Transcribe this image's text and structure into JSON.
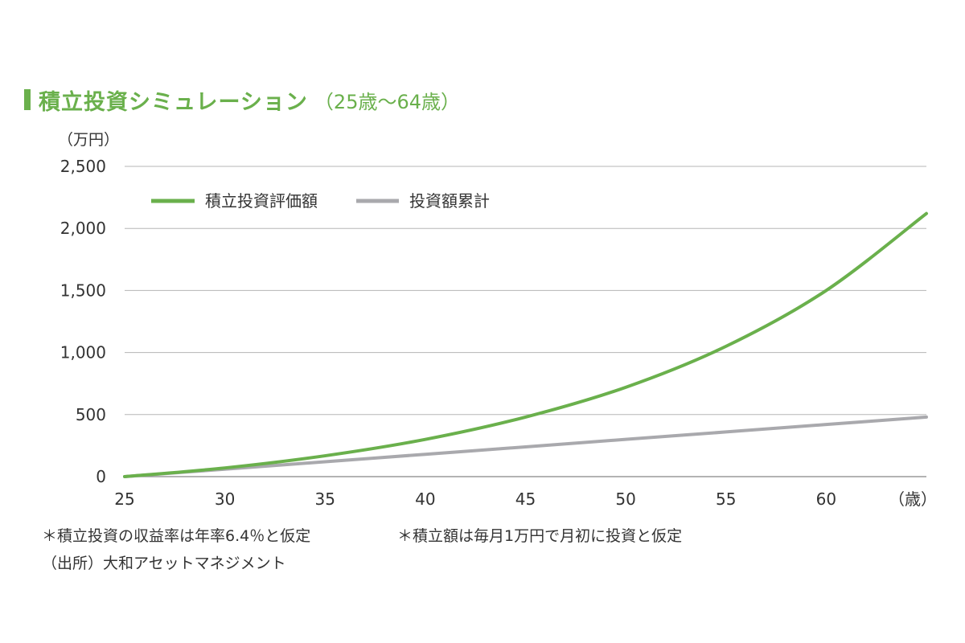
{
  "title": {
    "main": "積立投資シミュレーション",
    "sub": "（25歳～64歳）"
  },
  "colors": {
    "accent": "#6ab04c",
    "gray_series": "#a9a9ad",
    "grid": "#b5b5b5"
  },
  "chart_data": {
    "type": "line",
    "title": "積立投資シミュレーション（25歳～64歳）",
    "ylabel": "（万円）",
    "xlabel": "（歳）",
    "ylim": [
      0,
      2500
    ],
    "xlim": [
      25,
      65
    ],
    "y_ticks": [
      0,
      500,
      1000,
      1500,
      2000,
      2500
    ],
    "y_tick_labels": [
      "0",
      "500",
      "1,000",
      "1,500",
      "2,000",
      "2,500"
    ],
    "x_ticks": [
      25,
      30,
      35,
      40,
      45,
      50,
      55,
      60
    ],
    "x_tick_labels": [
      "25",
      "30",
      "35",
      "40",
      "45",
      "50",
      "55",
      "60"
    ],
    "grid": true,
    "legend_position": "top-left",
    "series": [
      {
        "name": "積立投資評価額",
        "color": "#6ab04c",
        "x": [
          25,
          30,
          35,
          40,
          45,
          50,
          55,
          60,
          65
        ],
        "values": [
          0,
          70,
          168,
          300,
          480,
          720,
          1050,
          1500,
          2120
        ]
      },
      {
        "name": "投資額累計",
        "color": "#a9a9ad",
        "x": [
          25,
          30,
          35,
          40,
          45,
          50,
          55,
          60,
          65
        ],
        "values": [
          0,
          60,
          120,
          180,
          240,
          300,
          360,
          420,
          480
        ]
      }
    ]
  },
  "notes": {
    "return_assumption": "＊積立投資の収益率は年率6.4％と仮定",
    "contribution_assumption": "＊積立額は毎月1万円で月初に投資と仮定",
    "source": "（出所）大和アセットマネジメント"
  }
}
